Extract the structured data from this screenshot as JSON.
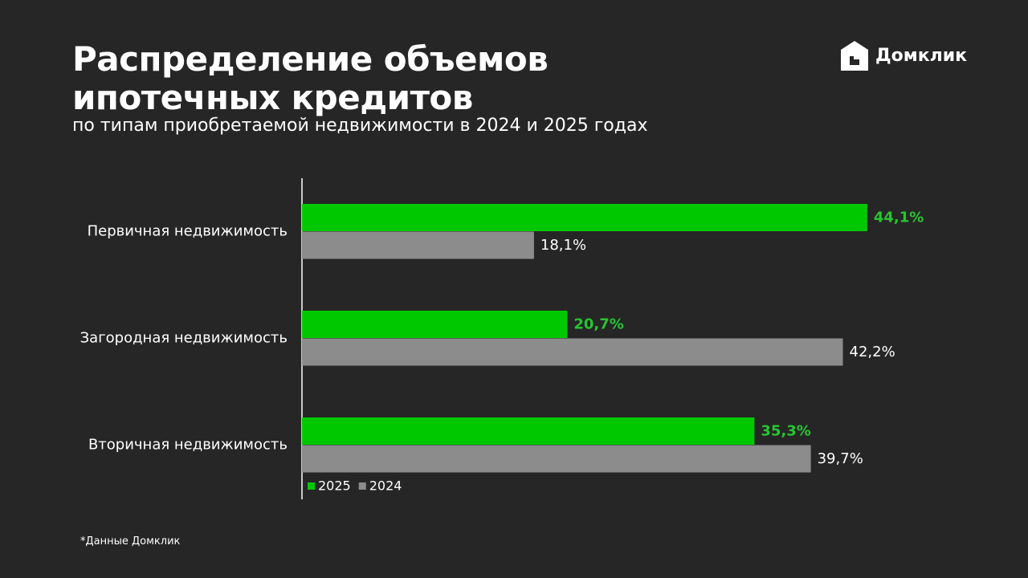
{
  "brand": "Домклик",
  "footnote": "*Данные Домклик",
  "chart_data": {
    "type": "bar",
    "orientation": "horizontal",
    "title": "Распределение объемов ипотечных кредитов",
    "subtitle": "по типам приобретаемой недвижимости в 2024 и 2025 годах",
    "categories": [
      "Первичная недвижимость",
      "Загородная недвижимость",
      "Вторичная недвижимость"
    ],
    "series": [
      {
        "name": "2025",
        "color": "#00c800",
        "label_color": "#27c52f",
        "values": [
          44.1,
          20.7,
          35.3
        ],
        "value_labels": [
          "44,1%",
          "20,7%",
          "35,3%"
        ]
      },
      {
        "name": "2024",
        "color": "#8c8c8c",
        "label_color": "#ffffff",
        "values": [
          18.1,
          42.2,
          39.7
        ],
        "value_labels": [
          "18,1%",
          "42,2%",
          "39,7%"
        ]
      }
    ],
    "legend": "bottom-left"
  }
}
